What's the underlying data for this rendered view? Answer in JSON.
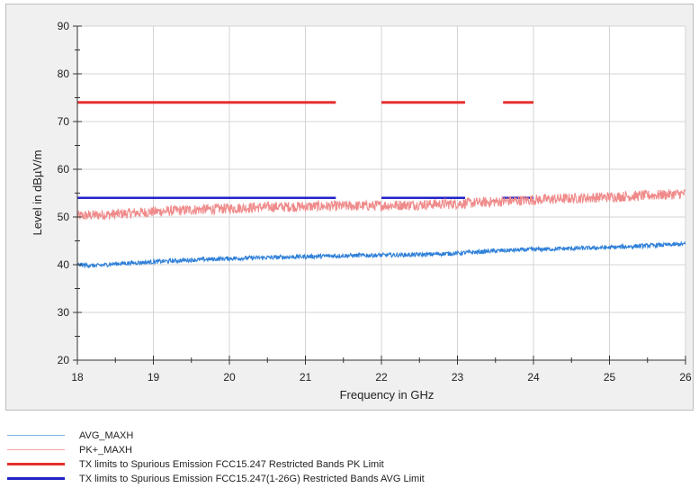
{
  "chart_data": {
    "type": "line",
    "xlabel": "Frequency in GHz",
    "ylabel": "Level in dBµV/m",
    "xlim": [
      18,
      26
    ],
    "ylim": [
      20,
      90
    ],
    "xticks": [
      18,
      19,
      20,
      21,
      22,
      23,
      24,
      25,
      26
    ],
    "yticks": [
      20,
      30,
      40,
      50,
      60,
      70,
      80,
      90
    ],
    "grid": true,
    "legend_position": "bottom",
    "series": [
      {
        "name": "AVG_MAXH",
        "color": "#2f80d8",
        "legend_color": "#7fb2de",
        "x": [
          18,
          18.25,
          18.5,
          19,
          19.5,
          20,
          20.5,
          21,
          21.5,
          22,
          22.5,
          23,
          23.5,
          24,
          24.5,
          25,
          25.5,
          26
        ],
        "values": [
          40,
          39.8,
          40.2,
          40.6,
          41.0,
          41.3,
          41.5,
          41.7,
          41.9,
          42.0,
          42.1,
          42.4,
          42.9,
          43.2,
          43.4,
          43.6,
          44.0,
          44.3
        ]
      },
      {
        "name": "PK+_MAXH",
        "color": "#f08a8a",
        "legend_color": "#f4a8a8",
        "x": [
          18,
          18.5,
          19,
          19.5,
          20,
          20.5,
          21,
          21.5,
          22,
          22.5,
          23,
          23.5,
          24,
          24.5,
          25,
          25.5,
          26
        ],
        "values": [
          50.2,
          50.6,
          51.1,
          51.5,
          51.8,
          52.1,
          52.2,
          52.3,
          52.4,
          52.6,
          52.8,
          53.2,
          53.6,
          53.9,
          54.2,
          54.5,
          54.9
        ]
      },
      {
        "name": "TX limits to Spurious Emission FCC15.247 Restricted Bands PK Limit",
        "color": "#e53030",
        "segments": [
          [
            18,
            21.4,
            74
          ],
          [
            22.0,
            23.1,
            74
          ],
          [
            23.6,
            24.0,
            74
          ]
        ]
      },
      {
        "name": "TX limits to Spurious Emission FCC15.247(1-26G) Restricted Bands AVG Limit",
        "color": "#2323c8",
        "segments": [
          [
            18,
            21.4,
            54
          ],
          [
            22.0,
            23.1,
            54
          ],
          [
            23.6,
            24.0,
            54
          ]
        ]
      }
    ]
  }
}
